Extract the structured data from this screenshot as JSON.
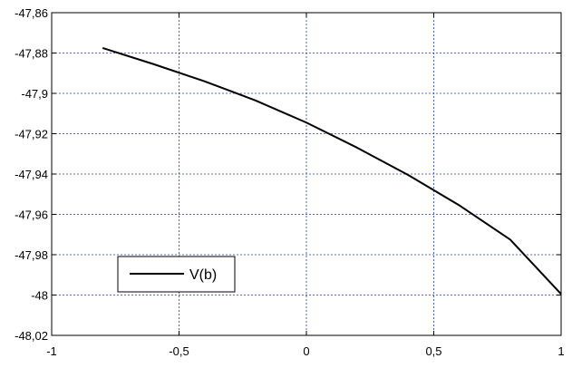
{
  "chart_data": {
    "type": "line",
    "xlim": [
      -1,
      1
    ],
    "ylim": [
      -48.02,
      -47.86
    ],
    "xticks": [
      -1,
      -0.5,
      0,
      0.5,
      1
    ],
    "xtick_labels": [
      "-1",
      "-0,5",
      "0",
      "0,5",
      "1"
    ],
    "yticks": [
      -47.86,
      -47.88,
      -47.9,
      -47.92,
      -47.94,
      -47.96,
      -47.98,
      -48,
      -48.02
    ],
    "ytick_labels": [
      "-47,86",
      "-47,88",
      "-47,9",
      "-47,92",
      "-47,94",
      "-47,96",
      "-47,98",
      "-48",
      "-48,02"
    ],
    "grid": true,
    "legend_position": "bottom-left",
    "series": [
      {
        "name": "V(b)",
        "color": "#000000",
        "x": [
          -0.8,
          -0.6,
          -0.4,
          -0.2,
          0,
          0.2,
          0.4,
          0.6,
          0.8,
          1.0
        ],
        "y": [
          -47.8775,
          -47.8855,
          -47.894,
          -47.9035,
          -47.9145,
          -47.927,
          -47.9405,
          -47.9555,
          -47.9725,
          -47.9995
        ]
      }
    ]
  }
}
